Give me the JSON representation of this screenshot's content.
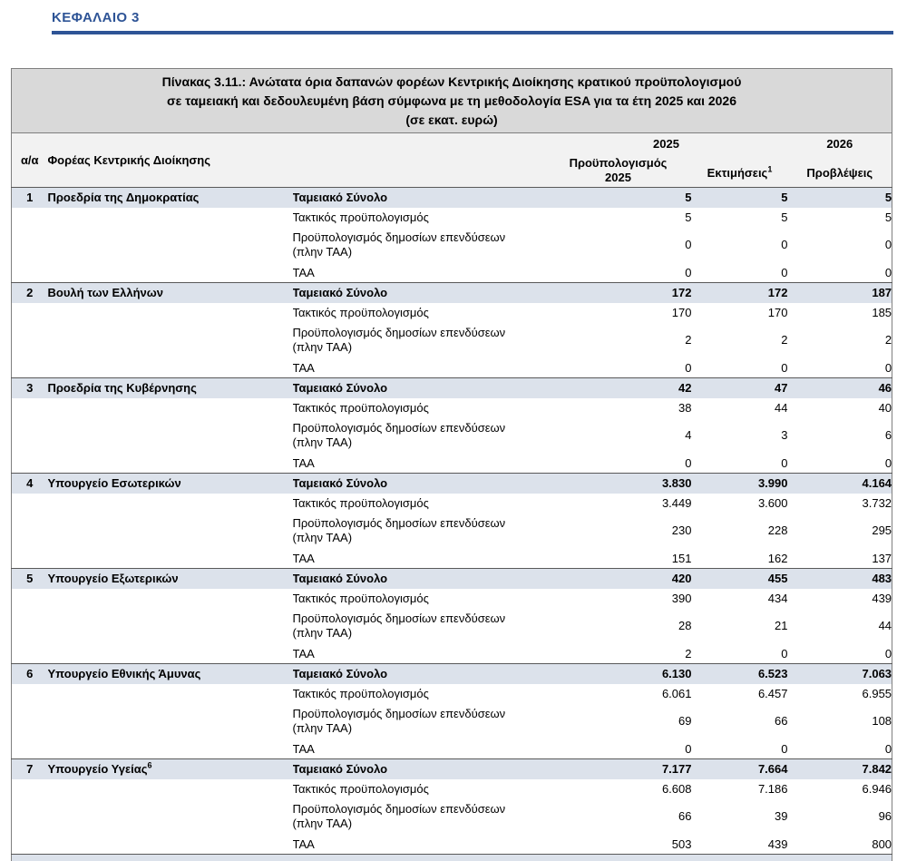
{
  "page": {
    "chapter": "ΚΕΦΑΛΑΙΟ 3"
  },
  "colors": {
    "accent_blue": "#2E5496",
    "title_bg": "#D9D9D9",
    "header_bg": "#F2F2F2",
    "total_row_bg": "#DCE2EB"
  },
  "table": {
    "title_lines": [
      "Πίνακας 3.11.: Ανώτατα όρια δαπανών φορέων Κεντρικής Διοίκησης κρατικού προϋπολογισμού",
      "σε ταμειακή και δεδουλευμένη βάση σύμφωνα με τη μεθοδολογία ESA για τα έτη 2025 και 2026",
      "(σε εκατ. ευρώ)"
    ],
    "headers": {
      "aa": "α/α",
      "entity": "Φορέας Κεντρικής Διοίκησης",
      "group_2025": "2025",
      "group_2026": "2026",
      "col1_line1": "Προϋπολογισμός",
      "col1_line2": "2025",
      "col2": "Εκτιμήσεις",
      "col2_sup": "1",
      "col3": "Προβλέψεις"
    },
    "row_labels": {
      "total": "Ταμειακό Σύνολο",
      "regular": "Τακτικός προϋπολογισμός",
      "pde_line1": "Προϋπολογισμός δημοσίων επενδύσεων",
      "pde_line2": "(πλην ΤΑΑ)",
      "taa": "ΤΑΑ"
    },
    "blocks": [
      {
        "num": "1",
        "name": "Προεδρία της Δημοκρατίας",
        "name_sup": "",
        "total": [
          "5",
          "5",
          "5"
        ],
        "regular": [
          "5",
          "5",
          "5"
        ],
        "pde": [
          "0",
          "0",
          "0"
        ],
        "taa": [
          "0",
          "0",
          "0"
        ]
      },
      {
        "num": "2",
        "name": "Βουλή των Ελλήνων",
        "name_sup": "",
        "total": [
          "172",
          "172",
          "187"
        ],
        "regular": [
          "170",
          "170",
          "185"
        ],
        "pde": [
          "2",
          "2",
          "2"
        ],
        "taa": [
          "0",
          "0",
          "0"
        ]
      },
      {
        "num": "3",
        "name": "Προεδρία της Κυβέρνησης",
        "name_sup": "",
        "total": [
          "42",
          "47",
          "46"
        ],
        "regular": [
          "38",
          "44",
          "40"
        ],
        "pde": [
          "4",
          "3",
          "6"
        ],
        "taa": [
          "0",
          "0",
          "0"
        ]
      },
      {
        "num": "4",
        "name": "Υπουργείο Εσωτερικών",
        "name_sup": "",
        "total": [
          "3.830",
          "3.990",
          "4.164"
        ],
        "regular": [
          "3.449",
          "3.600",
          "3.732"
        ],
        "pde": [
          "230",
          "228",
          "295"
        ],
        "taa": [
          "151",
          "162",
          "137"
        ]
      },
      {
        "num": "5",
        "name": "Υπουργείο Εξωτερικών",
        "name_sup": "",
        "total": [
          "420",
          "455",
          "483"
        ],
        "regular": [
          "390",
          "434",
          "439"
        ],
        "pde": [
          "28",
          "21",
          "44"
        ],
        "taa": [
          "2",
          "0",
          "0"
        ]
      },
      {
        "num": "6",
        "name": "Υπουργείο Εθνικής Άμυνας",
        "name_sup": "",
        "total": [
          "6.130",
          "6.523",
          "7.063"
        ],
        "regular": [
          "6.061",
          "6.457",
          "6.955"
        ],
        "pde": [
          "69",
          "66",
          "108"
        ],
        "taa": [
          "0",
          "0",
          "0"
        ]
      },
      {
        "num": "7",
        "name": "Υπουργείο Υγείας",
        "name_sup": "6",
        "total": [
          "7.177",
          "7.664",
          "7.842"
        ],
        "regular": [
          "6.608",
          "7.186",
          "6.946"
        ],
        "pde": [
          "66",
          "39",
          "96"
        ],
        "taa": [
          "503",
          "439",
          "800"
        ]
      }
    ]
  }
}
